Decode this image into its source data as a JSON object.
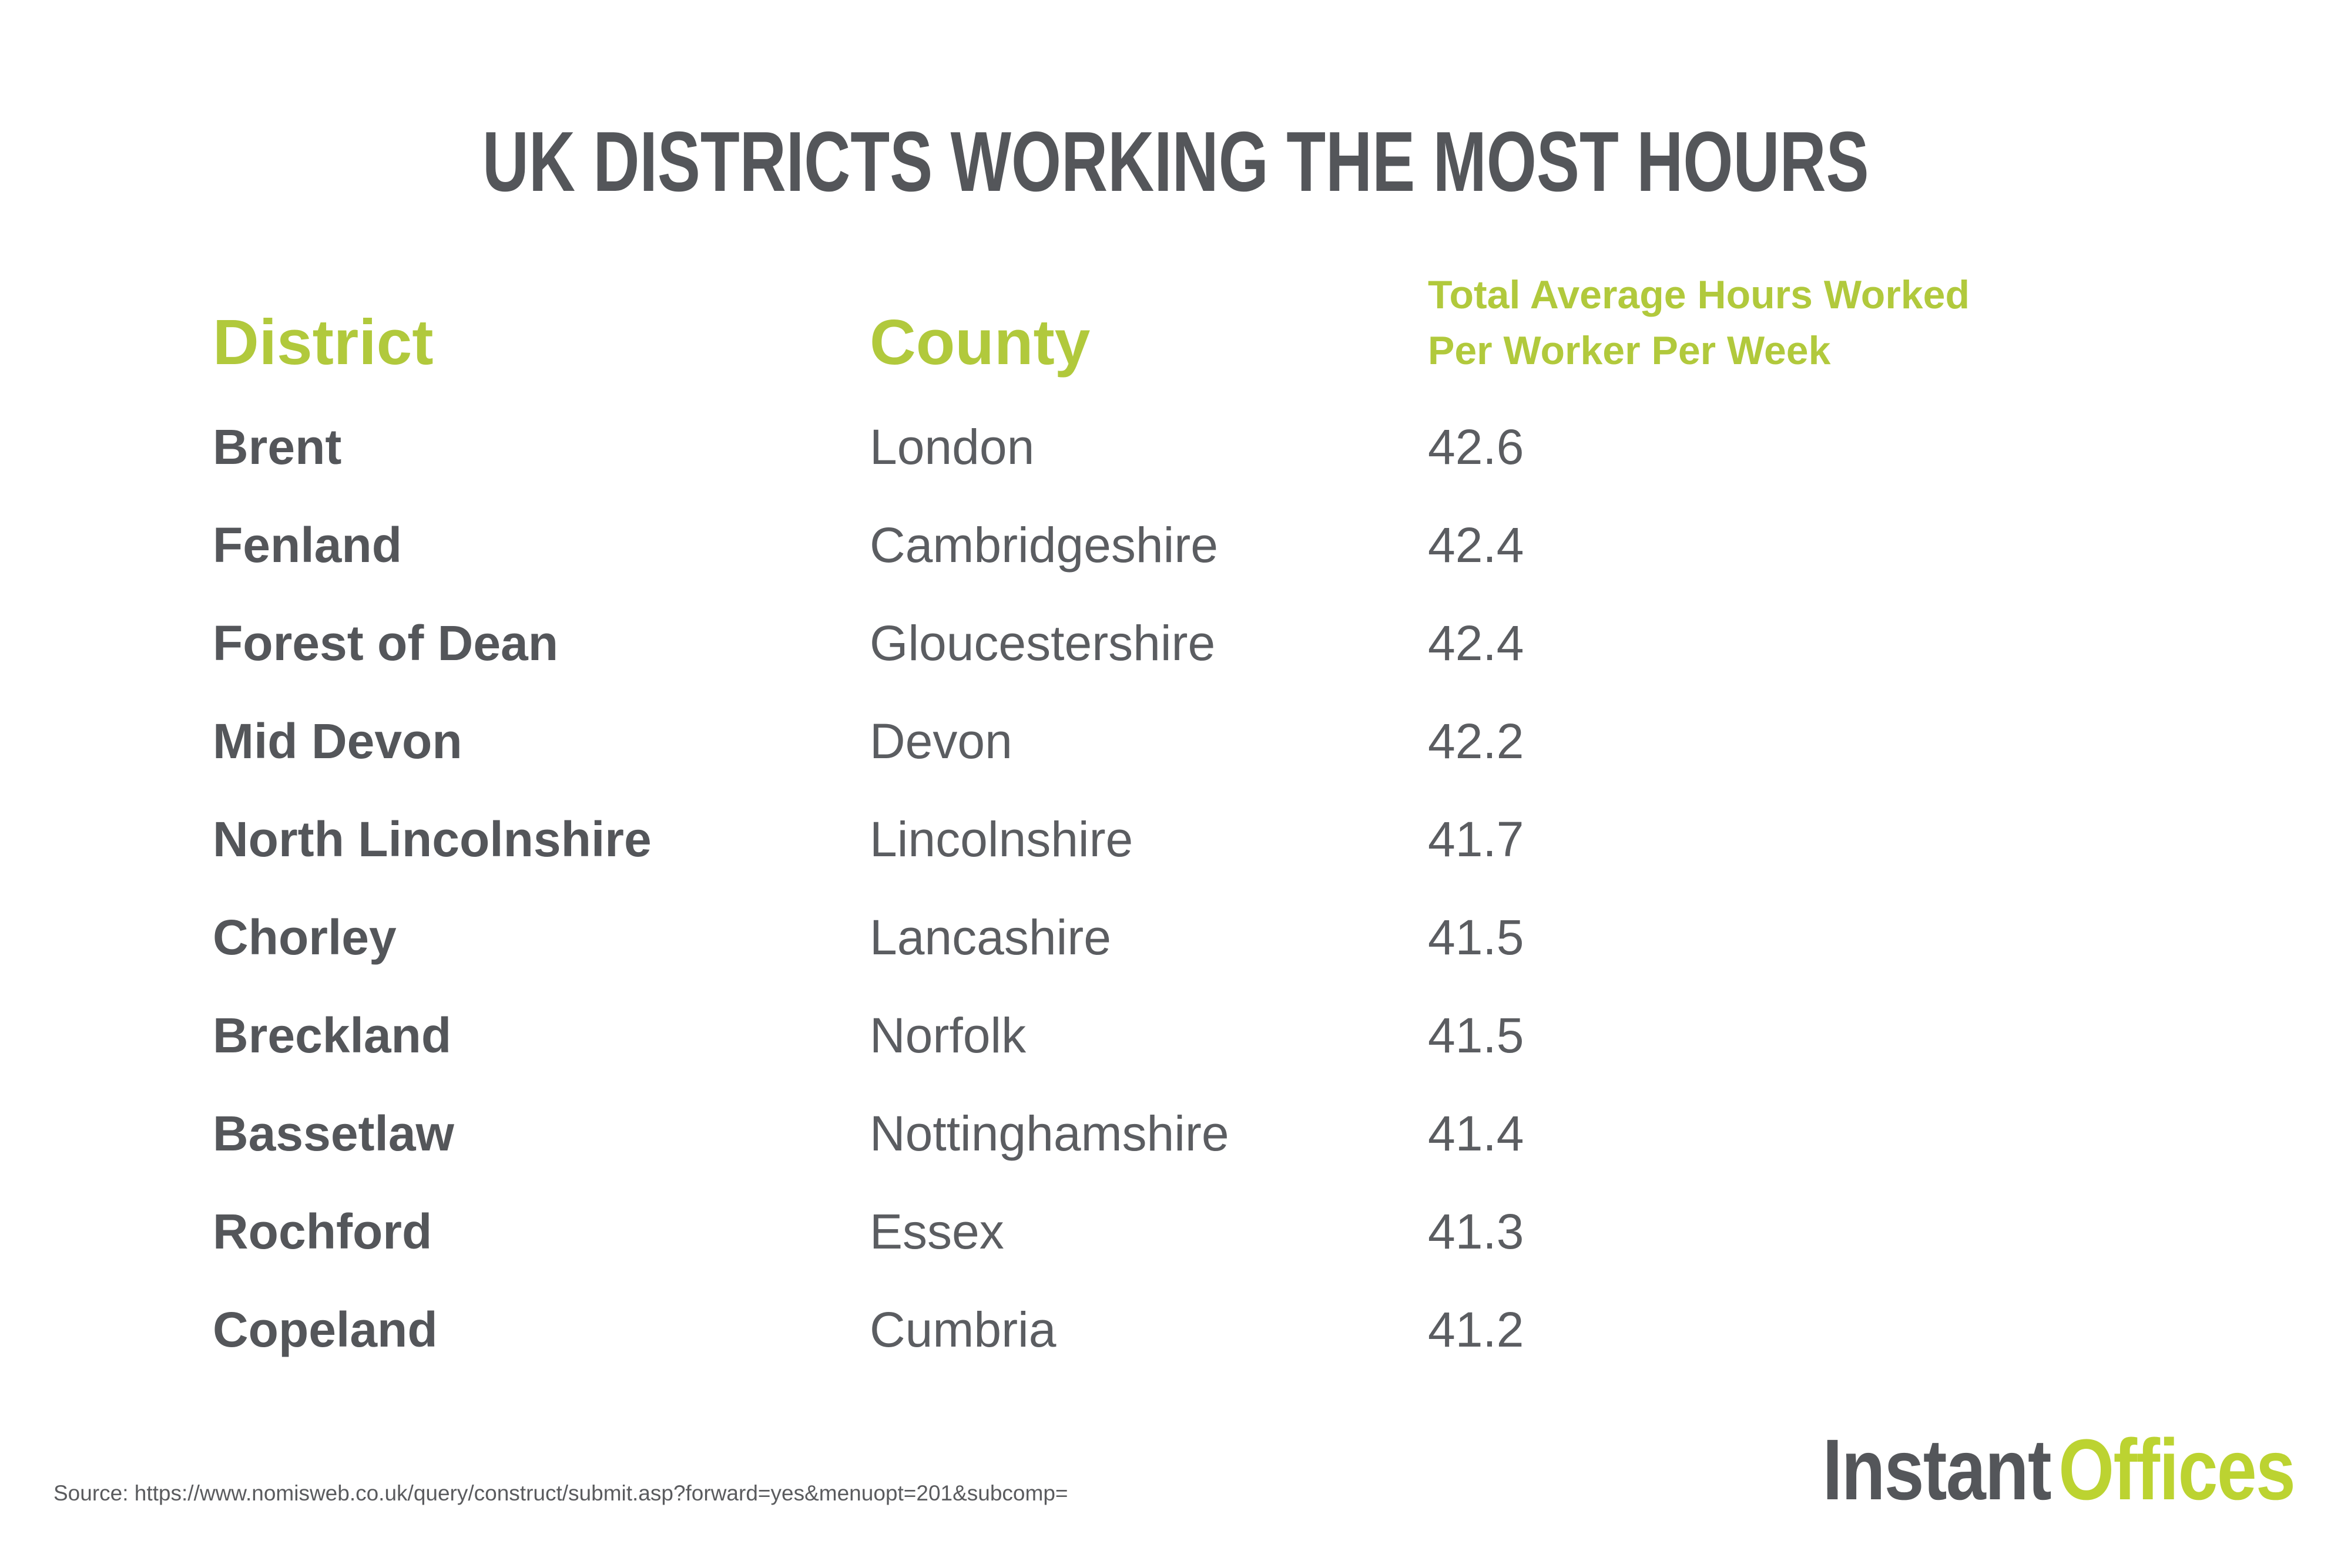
{
  "title": "UK DISTRICTS WORKING THE MOST HOURS",
  "labels": {
    "district_header": "District",
    "county_header": "County",
    "hours_header_line1": "Total Average Hours Worked",
    "hours_header_line2": "Per Worker Per Week"
  },
  "chart_data": {
    "type": "table",
    "title": "UK DISTRICTS WORKING THE MOST HOURS",
    "columns": [
      "District",
      "County",
      "Total Average Hours Worked Per Worker Per Week"
    ],
    "rows": [
      [
        "Brent",
        "London",
        "42.6"
      ],
      [
        "Fenland",
        "Cambridgeshire",
        "42.4"
      ],
      [
        "Forest of Dean",
        "Gloucestershire",
        "42.4"
      ],
      [
        "Mid Devon",
        "Devon",
        "42.2"
      ],
      [
        "North Lincolnshire",
        "Lincolnshire",
        "41.7"
      ],
      [
        "Chorley",
        "Lancashire",
        "41.5"
      ],
      [
        "Breckland",
        "Norfolk",
        "41.5"
      ],
      [
        "Bassetlaw",
        "Nottinghamshire",
        "41.4"
      ],
      [
        "Rochford",
        "Essex",
        "41.3"
      ],
      [
        "Copeland",
        "Cumbria",
        "41.2"
      ]
    ]
  },
  "source": "Source: https://www.nomisweb.co.uk/query/construct/submit.asp?forward=yes&menuopt=201&subcomp=",
  "logo": {
    "part1": "Instant",
    "part2": "Offices"
  },
  "colors": {
    "accent_green": "#B1C93C",
    "logo_green": "#BCD331",
    "text_dark": "#54565A",
    "text_body": "#5B5D61"
  }
}
